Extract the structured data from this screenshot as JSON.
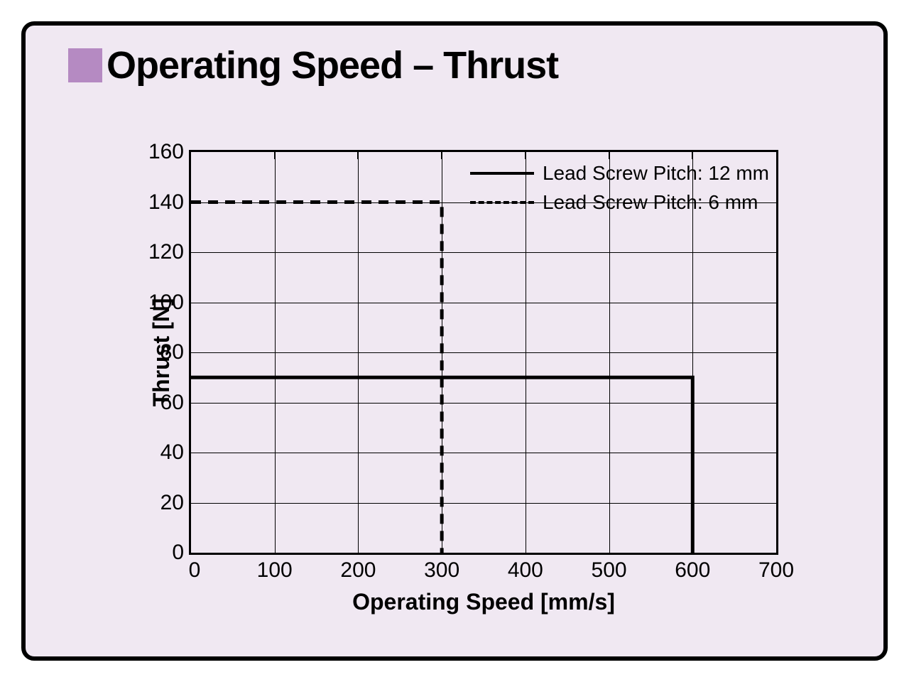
{
  "title": "Operating Speed – Thrust",
  "title_square_color": "#b58ac2",
  "title_fontsize": 54,
  "frame": {
    "background_color": "#f0e8f2",
    "border_color": "#000000",
    "border_width": 6,
    "border_radius": 18
  },
  "chart": {
    "type": "line",
    "background_color": "#f0e8f2",
    "grid_color": "#000000",
    "xlabel": "Operating Speed [mm/s]",
    "ylabel": "Thrust [N]",
    "label_fontsize": 32,
    "tick_fontsize": 30,
    "xlim": [
      0,
      700
    ],
    "ylim": [
      0,
      160
    ],
    "xticks": [
      0,
      100,
      200,
      300,
      400,
      500,
      600,
      700
    ],
    "yticks": [
      0,
      20,
      40,
      60,
      80,
      100,
      120,
      140,
      160
    ],
    "xtick_labels": [
      "0",
      "100",
      "200",
      "300",
      "400",
      "500",
      "600",
      "700"
    ],
    "ytick_labels": [
      "0",
      "20",
      "40",
      "60",
      "80",
      "100",
      "120",
      "140",
      "160"
    ],
    "series": [
      {
        "name": "Lead Screw Pitch: 12 mm",
        "style": "solid",
        "line_width": 5,
        "color": "#000000",
        "points": [
          [
            0,
            70
          ],
          [
            600,
            70
          ],
          [
            600,
            0
          ]
        ]
      },
      {
        "name": "Lead Screw Pitch: 6 mm",
        "style": "dashed",
        "dash": "14 10",
        "line_width": 5,
        "color": "#000000",
        "points": [
          [
            0,
            140
          ],
          [
            300,
            140
          ],
          [
            300,
            0
          ]
        ]
      }
    ],
    "legend": {
      "position": "top-right",
      "items": [
        {
          "label": "Lead Screw Pitch: 12 mm",
          "style": "solid"
        },
        {
          "label": "Lead Screw Pitch: 6 mm",
          "style": "dashed"
        }
      ],
      "fontsize": 28
    }
  }
}
